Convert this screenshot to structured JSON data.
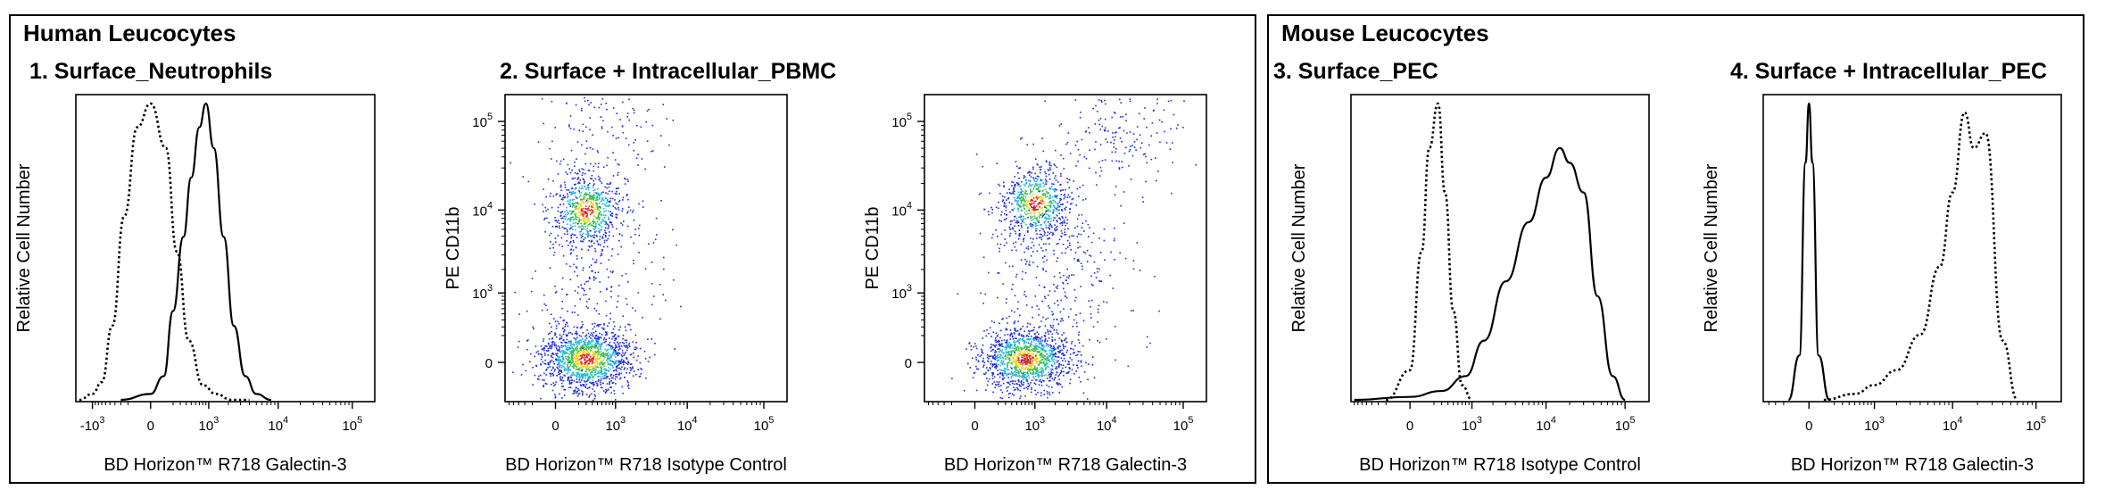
{
  "groups": [
    {
      "title": "Human Leucocytes"
    },
    {
      "title": "Mouse Leucocytes"
    }
  ],
  "chart_data": [
    {
      "type": "line",
      "title": "1. Surface_Neutrophils",
      "xlabel": "BD Horizon™ R718 Galectin-3",
      "ylabel": "Relative Cell Number",
      "x_ticks": [
        {
          "base": "-10",
          "exp": "3",
          "value": -1000
        },
        {
          "base": "0",
          "exp": "",
          "value": 0
        },
        {
          "base": "10",
          "exp": "3",
          "value": 1000
        },
        {
          "base": "10",
          "exp": "4",
          "value": 10000
        },
        {
          "base": "10",
          "exp": "5",
          "value": 100000
        }
      ],
      "grid": false,
      "series": [
        {
          "style": "dotted",
          "x": [
            -1600,
            -1000,
            -700,
            -450,
            -250,
            -100,
            0,
            120,
            250,
            450,
            800,
            1300,
            2200,
            4000
          ],
          "y": [
            0,
            0.02,
            0.06,
            0.25,
            0.62,
            0.92,
            1.0,
            0.85,
            0.5,
            0.2,
            0.05,
            0.02,
            0.0,
            0.0
          ]
        },
        {
          "style": "solid",
          "x": [
            -300,
            0,
            100,
            200,
            350,
            500,
            700,
            900,
            1200,
            1700,
            2400,
            3500,
            5000,
            8000
          ],
          "y": [
            0,
            0.02,
            0.08,
            0.3,
            0.55,
            0.75,
            0.92,
            1.0,
            0.85,
            0.55,
            0.25,
            0.08,
            0.02,
            0
          ]
        }
      ]
    },
    {
      "type": "scatter",
      "title": "2. Surface + Intracellular_PBMC",
      "xlabel": "BD Horizon™ R718 Isotype Control",
      "ylabel": "PE CD11b",
      "x_ticks": [
        {
          "base": "0",
          "exp": "",
          "value": 0
        },
        {
          "base": "10",
          "exp": "3",
          "value": 1000
        },
        {
          "base": "10",
          "exp": "4",
          "value": 10000
        },
        {
          "base": "10",
          "exp": "5",
          "value": 100000
        }
      ],
      "y_ticks": [
        {
          "base": "0",
          "exp": "",
          "value": 0
        },
        {
          "base": "10",
          "exp": "3",
          "value": 1000
        },
        {
          "base": "10",
          "exp": "4",
          "value": 10000
        },
        {
          "base": "10",
          "exp": "5",
          "value": 100000
        }
      ],
      "populations": [
        {
          "x": 300,
          "y": 10000,
          "fraction": 0.3
        },
        {
          "x": 300,
          "y": 20,
          "fraction": 0.55
        },
        {
          "x": 500,
          "y": 90000,
          "fraction": 0.05
        },
        {
          "x": 400,
          "y": 2000,
          "fraction": 0.1
        }
      ]
    },
    {
      "type": "scatter",
      "title": "",
      "xlabel": "BD Horizon™ R718 Galectin-3",
      "ylabel": "PE CD11b",
      "x_ticks": [
        {
          "base": "0",
          "exp": "",
          "value": 0
        },
        {
          "base": "10",
          "exp": "3",
          "value": 1000
        },
        {
          "base": "10",
          "exp": "4",
          "value": 10000
        },
        {
          "base": "10",
          "exp": "5",
          "value": 100000
        }
      ],
      "y_ticks": [
        {
          "base": "0",
          "exp": "",
          "value": 0
        },
        {
          "base": "10",
          "exp": "3",
          "value": 1000
        },
        {
          "base": "10",
          "exp": "4",
          "value": 10000
        },
        {
          "base": "10",
          "exp": "5",
          "value": 100000
        }
      ],
      "populations": [
        {
          "x": 1000,
          "y": 12000,
          "fraction": 0.28
        },
        {
          "x": 700,
          "y": 20,
          "fraction": 0.5
        },
        {
          "x": 15000,
          "y": 80000,
          "fraction": 0.07
        },
        {
          "x": 2000,
          "y": 1500,
          "fraction": 0.15
        }
      ]
    },
    {
      "type": "line",
      "title": "3. Surface_PEC",
      "xlabel": "BD Horizon™ R718 Isotype Control",
      "ylabel": "Relative Cell Number",
      "x_ticks": [
        {
          "base": "0",
          "exp": "",
          "value": 0
        },
        {
          "base": "10",
          "exp": "3",
          "value": 1000
        },
        {
          "base": "10",
          "exp": "4",
          "value": 10000
        },
        {
          "base": "10",
          "exp": "5",
          "value": 100000
        }
      ],
      "grid": false,
      "series": [
        {
          "style": "dotted",
          "x": [
            -200,
            0,
            80,
            150,
            250,
            350,
            500,
            700,
            1000
          ],
          "y": [
            0,
            0.1,
            0.5,
            0.85,
            1.0,
            0.7,
            0.3,
            0.05,
            0
          ]
        },
        {
          "style": "solid",
          "x": [
            -800,
            0,
            300,
            800,
            1500,
            3000,
            6000,
            10000,
            15000,
            20000,
            30000,
            45000,
            70000,
            100000
          ],
          "y": [
            0,
            0.01,
            0.03,
            0.08,
            0.2,
            0.4,
            0.6,
            0.75,
            0.85,
            0.8,
            0.7,
            0.35,
            0.08,
            0
          ]
        }
      ]
    },
    {
      "type": "line",
      "title": "4. Surface + Intracellular_PEC",
      "xlabel": "BD Horizon™ R718 Galectin-3",
      "ylabel": "Relative Cell Number",
      "x_ticks": [
        {
          "base": "0",
          "exp": "",
          "value": 0
        },
        {
          "base": "10",
          "exp": "3",
          "value": 1000
        },
        {
          "base": "10",
          "exp": "4",
          "value": 10000
        },
        {
          "base": "10",
          "exp": "5",
          "value": 100000
        }
      ],
      "grid": false,
      "series": [
        {
          "style": "solid",
          "x": [
            -150,
            -60,
            -20,
            0,
            20,
            60,
            150
          ],
          "y": [
            0,
            0.15,
            0.8,
            1.0,
            0.8,
            0.15,
            0
          ]
        },
        {
          "style": "dotted",
          "x": [
            100,
            500,
            1000,
            2000,
            4000,
            7000,
            10000,
            14000,
            18000,
            25000,
            40000,
            60000
          ],
          "y": [
            0,
            0.02,
            0.05,
            0.1,
            0.22,
            0.45,
            0.7,
            0.97,
            0.85,
            0.9,
            0.2,
            0
          ]
        }
      ]
    }
  ]
}
